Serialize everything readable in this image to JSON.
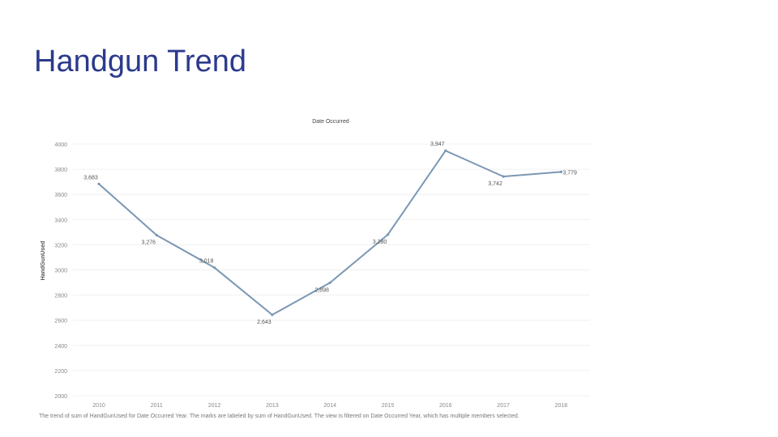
{
  "slide": {
    "title": "Handgun Trend"
  },
  "chart_data": {
    "type": "line",
    "title": "Date Occurred",
    "xlabel": "",
    "ylabel": "HandGunUsed",
    "categories": [
      "2010",
      "2011",
      "2012",
      "2013",
      "2014",
      "2015",
      "2016",
      "2017",
      "2018"
    ],
    "series": [
      {
        "values": [
          3683,
          3276,
          3018,
          2643,
          2898,
          3280,
          3947,
          3742,
          3779
        ],
        "labels": [
          "3,683",
          "3,276",
          "3,018",
          "2,643",
          "2,898",
          "3,280",
          "3,947",
          "3,742",
          "3,779"
        ],
        "label_positions": [
          "above",
          "below",
          "above",
          "below",
          "below",
          "below",
          "above",
          "below",
          "right"
        ]
      }
    ],
    "yticks": [
      2000,
      2200,
      2400,
      2600,
      2800,
      3000,
      3200,
      3400,
      3600,
      3800,
      4000
    ],
    "ylim": [
      2000,
      4000
    ],
    "grid": true,
    "line_color": "#7a97b4",
    "caption": "The trend of sum of HandGunUsed for Date Occurred Year.  The marks are labeled by sum of HandGunUsed. The view is filtered on Date Occurred Year, which has multiple members selected."
  }
}
